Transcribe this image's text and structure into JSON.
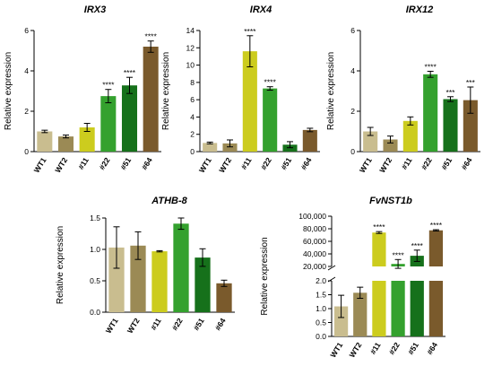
{
  "colors": {
    "WT1": "#c9bd8f",
    "WT2": "#9b8a55",
    "#11": "#cccc1e",
    "#22": "#34a12e",
    "#51": "#16711b",
    "#64": "#7a5a2c",
    "axis": "#000000"
  },
  "chart_data": [
    {
      "id": "irx3",
      "type": "bar",
      "title": "IRX3",
      "ylabel": "Relative expression",
      "categories": [
        "WT1",
        "WT2",
        "#11",
        "#22",
        "#51",
        "#64"
      ],
      "values": [
        1.0,
        0.75,
        1.2,
        2.75,
        3.28,
        5.2
      ],
      "errors": [
        0.06,
        0.07,
        0.2,
        0.33,
        0.4,
        0.28
      ],
      "significance": [
        "",
        "",
        "",
        "****",
        "****",
        "****"
      ],
      "ylim": [
        0,
        6
      ],
      "yticks": [
        "0",
        "2",
        "4",
        "6"
      ],
      "grid": false
    },
    {
      "id": "irx4",
      "type": "bar",
      "title": "IRX4",
      "ylabel": "Relative expression",
      "categories": [
        "WT1",
        "WT2",
        "#11",
        "#22",
        "#51",
        "#64"
      ],
      "values": [
        1.0,
        0.95,
        11.6,
        7.3,
        0.8,
        2.5
      ],
      "errors": [
        0.1,
        0.4,
        1.8,
        0.2,
        0.35,
        0.2
      ],
      "significance": [
        "",
        "",
        "****",
        "****",
        "",
        ""
      ],
      "ylim": [
        0,
        14
      ],
      "yticks": [
        "0",
        "2",
        "4",
        "6",
        "8",
        "10",
        "12",
        "14"
      ],
      "grid": false
    },
    {
      "id": "irx12",
      "type": "bar",
      "title": "IRX12",
      "ylabel": "Relative expression",
      "categories": [
        "WT1",
        "WT2",
        "#11",
        "#22",
        "#51",
        "#64"
      ],
      "values": [
        1.0,
        0.6,
        1.52,
        3.83,
        2.6,
        2.55
      ],
      "errors": [
        0.2,
        0.17,
        0.2,
        0.15,
        0.12,
        0.65
      ],
      "significance": [
        "",
        "",
        "",
        "****",
        "***",
        "***"
      ],
      "ylim": [
        0,
        6
      ],
      "yticks": [
        "0",
        "2",
        "4",
        "6"
      ],
      "grid": false
    },
    {
      "id": "athb8",
      "type": "bar",
      "title": "ATHB-8",
      "ylabel": "Relative expression",
      "categories": [
        "WT1",
        "WT2",
        "#11",
        "#22",
        "#51",
        "#64"
      ],
      "values": [
        1.03,
        1.06,
        0.97,
        1.41,
        0.87,
        0.46
      ],
      "errors": [
        0.33,
        0.22,
        0.01,
        0.09,
        0.14,
        0.05
      ],
      "significance": [
        "",
        "",
        "",
        "",
        "",
        ""
      ],
      "ylim": [
        0,
        1.5
      ],
      "yticks": [
        "0.0",
        "0.5",
        "1.0",
        "1.5"
      ],
      "grid": false
    },
    {
      "id": "fvnst1b",
      "type": "bar",
      "title": "FvNST1b",
      "ylabel": "Relative expression",
      "categories": [
        "WT1",
        "WT2",
        "#11",
        "#22",
        "#51",
        "#64"
      ],
      "values": [
        1.08,
        1.57,
        74000,
        24000,
        37000,
        77500
      ],
      "errors": [
        0.4,
        0.2,
        1500,
        7000,
        9000,
        1000
      ],
      "significance": [
        "",
        "",
        "****",
        "****",
        "****",
        "****"
      ],
      "axis_break": true,
      "lower_ylim": [
        0,
        2.0
      ],
      "lower_yticks": [
        "0.0",
        "0.5",
        "1.0",
        "1.5",
        "2.0"
      ],
      "upper_ylim": [
        20000,
        100000
      ],
      "upper_yticks": [
        "20,000",
        "40,000",
        "60,000",
        "80,000",
        "100,000"
      ],
      "grid": false
    }
  ]
}
